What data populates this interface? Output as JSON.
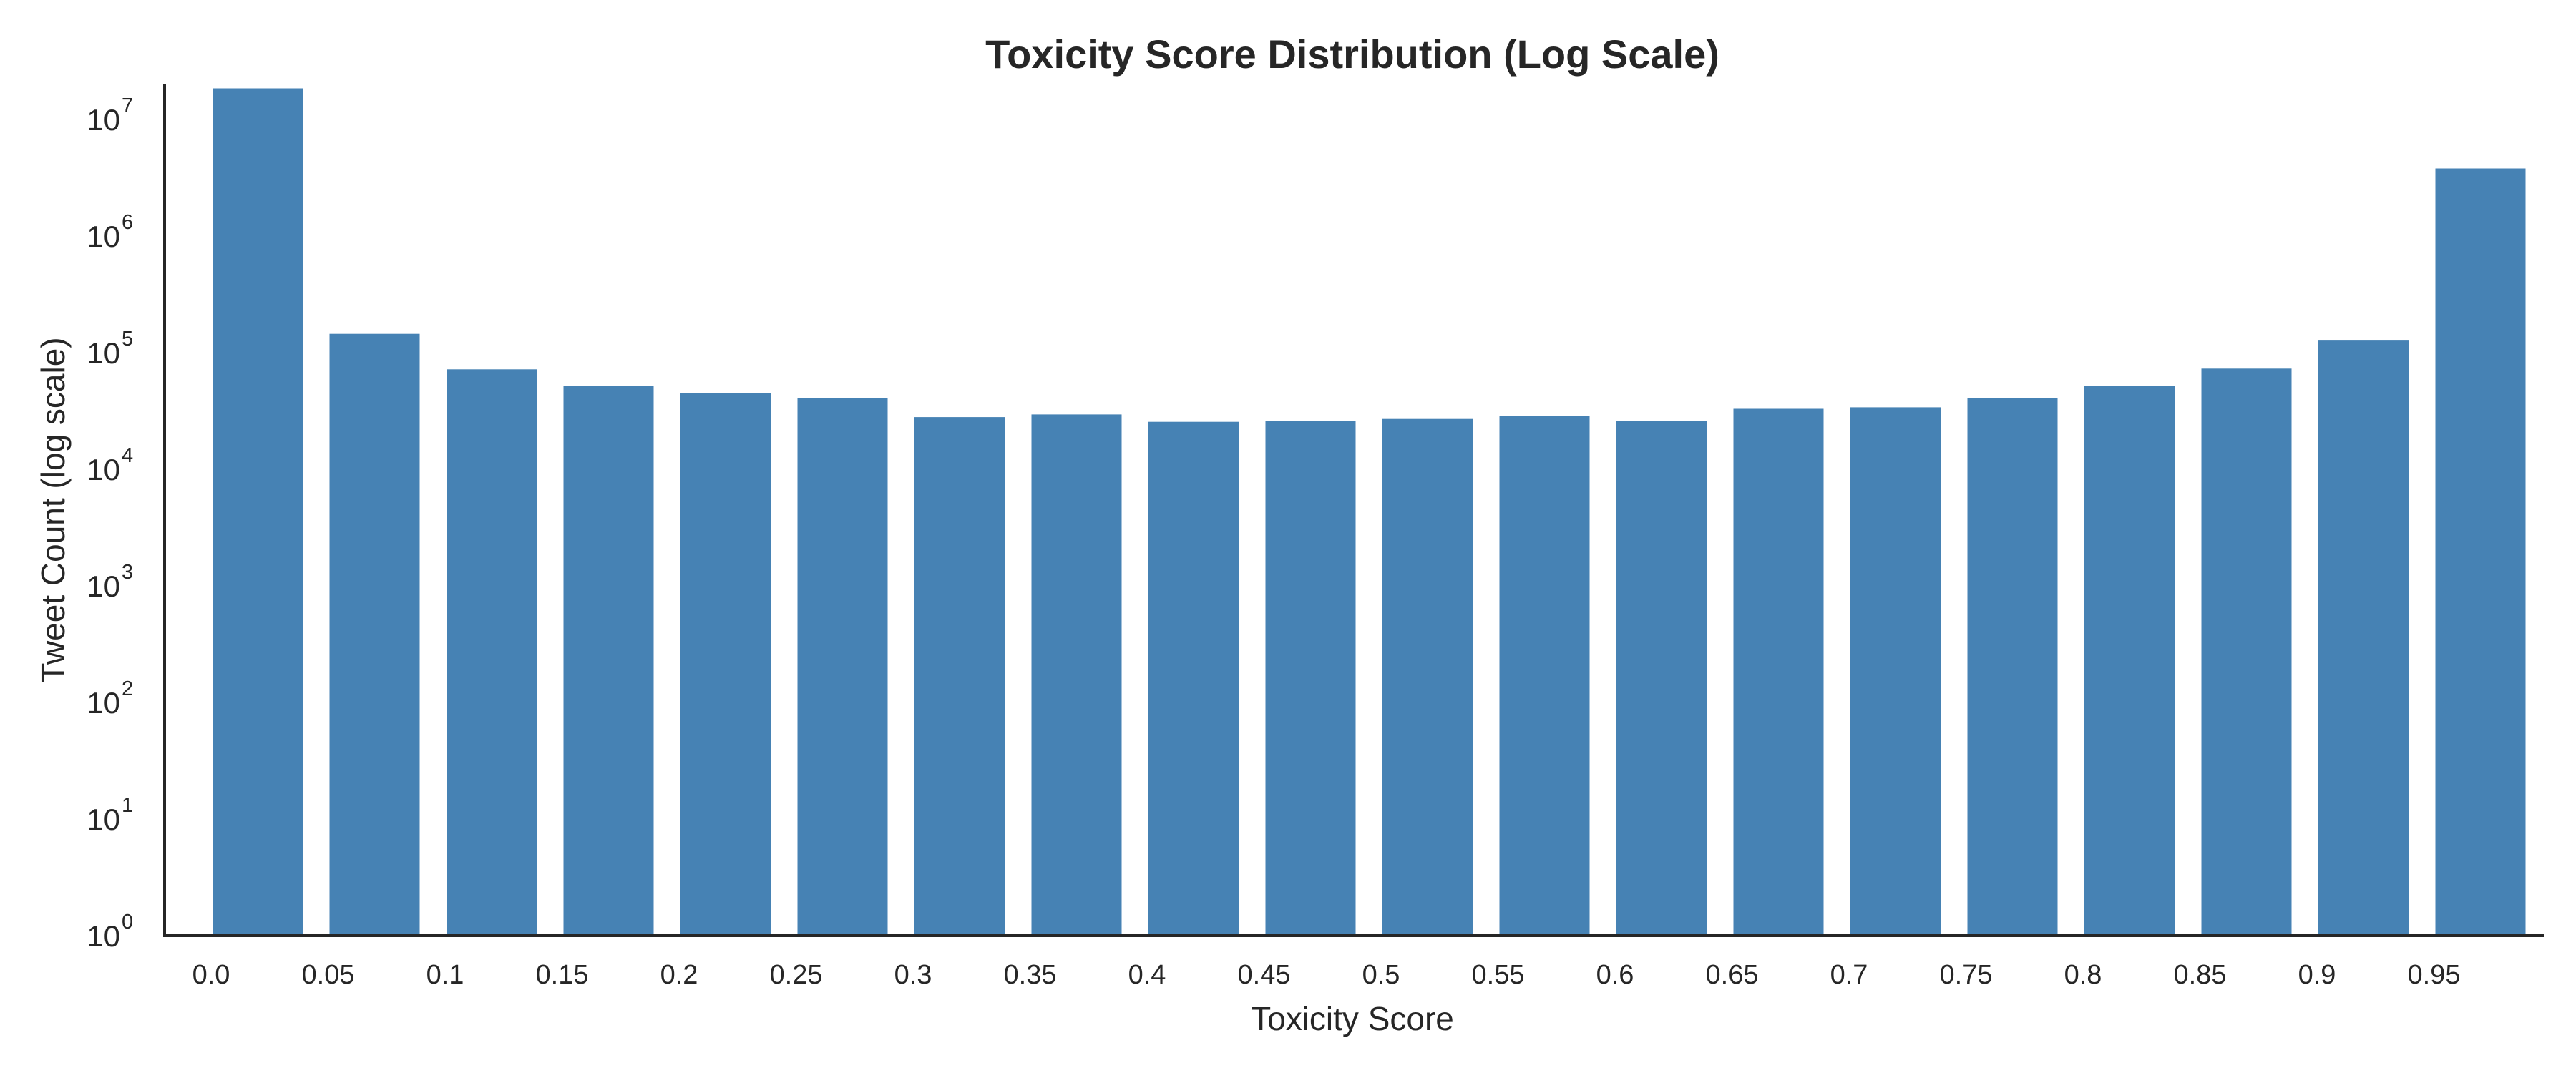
{
  "chart_data": {
    "type": "bar",
    "title": "Toxicity Score Distribution (Log Scale)",
    "xlabel": "Toxicity Score",
    "ylabel": "Tweet Count (log scale)",
    "yscale": "log",
    "ylim": [
      1,
      20000000
    ],
    "grid": false,
    "legend": "none",
    "bar_color": "#4682B4",
    "categories": [
      "0.0",
      "0.05",
      "0.1",
      "0.15",
      "0.2",
      "0.25",
      "0.3",
      "0.35",
      "0.4",
      "0.45",
      "0.5",
      "0.55",
      "0.6",
      "0.65",
      "0.7",
      "0.75",
      "0.8",
      "0.85",
      "0.9",
      "0.95"
    ],
    "values": [
      18500000,
      145000,
      72000,
      52000,
      45000,
      41000,
      28000,
      29500,
      25500,
      26000,
      27000,
      28500,
      26000,
      33000,
      34000,
      41000,
      52000,
      73000,
      127000,
      3800000
    ],
    "yticks": [
      {
        "base": "10",
        "exp": "0"
      },
      {
        "base": "10",
        "exp": "1"
      },
      {
        "base": "10",
        "exp": "2"
      },
      {
        "base": "10",
        "exp": "3"
      },
      {
        "base": "10",
        "exp": "4"
      },
      {
        "base": "10",
        "exp": "5"
      },
      {
        "base": "10",
        "exp": "6"
      },
      {
        "base": "10",
        "exp": "7"
      }
    ]
  }
}
